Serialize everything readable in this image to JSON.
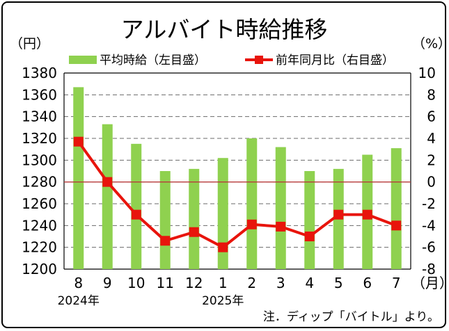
{
  "chart_data": {
    "type": "bar+line",
    "title": "アルバイト時給推移",
    "left_unit": "（円）",
    "right_unit": "（%）",
    "x_unit": "（月）",
    "categories": [
      "8",
      "9",
      "10",
      "11",
      "12",
      "1",
      "2",
      "3",
      "4",
      "5",
      "6",
      "7"
    ],
    "year_labels": [
      {
        "index": 0,
        "text": "2024年"
      },
      {
        "index": 5,
        "text": "2025年"
      }
    ],
    "bar_series": {
      "name": "平均時給（左目盛）",
      "color": "#8fd14f",
      "values": [
        1367,
        1333,
        1315,
        1290,
        1292,
        1302,
        1320,
        1312,
        1290,
        1292,
        1305,
        1311
      ]
    },
    "line_series": {
      "name": "前年同月比（右目盛）",
      "color": "#e8140c",
      "values": [
        3.7,
        0.0,
        -3.0,
        -5.4,
        -4.6,
        -6.0,
        -3.9,
        -4.1,
        -5.0,
        -3.0,
        -3.0,
        -4.0
      ]
    },
    "left_axis": {
      "min": 1200,
      "max": 1380,
      "ticks": [
        1200,
        1220,
        1240,
        1260,
        1280,
        1300,
        1320,
        1340,
        1360,
        1380
      ]
    },
    "right_axis": {
      "min": -8,
      "max": 10,
      "ticks": [
        -8,
        -6,
        -4,
        -2,
        0,
        2,
        4,
        6,
        8,
        10
      ]
    },
    "reference_line": {
      "axis": "right",
      "value": 0,
      "color": "#b83a3a"
    },
    "grid": true,
    "legend_position": "top",
    "note": "注．ディップ「バイトル」より。"
  }
}
